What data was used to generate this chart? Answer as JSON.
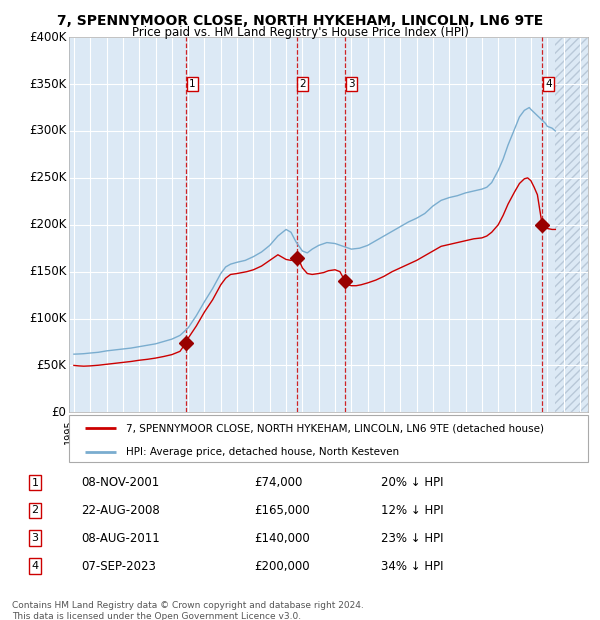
{
  "title": "7, SPENNYMOOR CLOSE, NORTH HYKEHAM, LINCOLN, LN6 9TE",
  "subtitle": "Price paid vs. HM Land Registry's House Price Index (HPI)",
  "bg_color": "#dce9f5",
  "grid_color": "#ffffff",
  "ylim": [
    0,
    400000
  ],
  "yticks": [
    0,
    50000,
    100000,
    150000,
    200000,
    250000,
    300000,
    350000,
    400000
  ],
  "ytick_labels": [
    "£0",
    "£50K",
    "£100K",
    "£150K",
    "£200K",
    "£250K",
    "£300K",
    "£350K",
    "£400K"
  ],
  "xlim_start": 1994.7,
  "xlim_end": 2026.5,
  "hatch_start": 2024.5,
  "transactions": [
    {
      "num": 1,
      "date": "08-NOV-2001",
      "year": 2001.86,
      "price": 74000,
      "pct": "20%"
    },
    {
      "num": 2,
      "date": "22-AUG-2008",
      "year": 2008.64,
      "price": 165000,
      "pct": "12%"
    },
    {
      "num": 3,
      "date": "08-AUG-2011",
      "year": 2011.61,
      "price": 140000,
      "pct": "23%"
    },
    {
      "num": 4,
      "date": "07-SEP-2023",
      "year": 2023.69,
      "price": 200000,
      "pct": "34%"
    }
  ],
  "legend_label_red": "7, SPENNYMOOR CLOSE, NORTH HYKEHAM, LINCOLN, LN6 9TE (detached house)",
  "legend_label_blue": "HPI: Average price, detached house, North Kesteven",
  "footer": "Contains HM Land Registry data © Crown copyright and database right 2024.\nThis data is licensed under the Open Government Licence v3.0.",
  "red_color": "#cc0000",
  "blue_color": "#7aadcf",
  "marker_color": "#990000",
  "hpi_curve": [
    [
      1995.0,
      62000
    ],
    [
      1995.3,
      62200
    ],
    [
      1995.6,
      62500
    ],
    [
      1996.0,
      63200
    ],
    [
      1996.5,
      64000
    ],
    [
      1997.0,
      65500
    ],
    [
      1997.5,
      66500
    ],
    [
      1998.0,
      67500
    ],
    [
      1998.5,
      68500
    ],
    [
      1999.0,
      70000
    ],
    [
      1999.5,
      71500
    ],
    [
      2000.0,
      73000
    ],
    [
      2000.5,
      75500
    ],
    [
      2001.0,
      78000
    ],
    [
      2001.5,
      82000
    ],
    [
      2002.0,
      90000
    ],
    [
      2002.5,
      103000
    ],
    [
      2003.0,
      118000
    ],
    [
      2003.5,
      132000
    ],
    [
      2004.0,
      148000
    ],
    [
      2004.3,
      155000
    ],
    [
      2004.6,
      158000
    ],
    [
      2005.0,
      160000
    ],
    [
      2005.5,
      162000
    ],
    [
      2006.0,
      166000
    ],
    [
      2006.5,
      171000
    ],
    [
      2007.0,
      178000
    ],
    [
      2007.5,
      188000
    ],
    [
      2008.0,
      195000
    ],
    [
      2008.3,
      192000
    ],
    [
      2008.6,
      182000
    ],
    [
      2009.0,
      172000
    ],
    [
      2009.3,
      170000
    ],
    [
      2009.6,
      174000
    ],
    [
      2010.0,
      178000
    ],
    [
      2010.5,
      181000
    ],
    [
      2011.0,
      180000
    ],
    [
      2011.5,
      177000
    ],
    [
      2012.0,
      174000
    ],
    [
      2012.5,
      175000
    ],
    [
      2013.0,
      178000
    ],
    [
      2013.5,
      183000
    ],
    [
      2014.0,
      188000
    ],
    [
      2014.5,
      193000
    ],
    [
      2015.0,
      198000
    ],
    [
      2015.5,
      203000
    ],
    [
      2016.0,
      207000
    ],
    [
      2016.5,
      212000
    ],
    [
      2017.0,
      220000
    ],
    [
      2017.5,
      226000
    ],
    [
      2018.0,
      229000
    ],
    [
      2018.5,
      231000
    ],
    [
      2019.0,
      234000
    ],
    [
      2019.5,
      236000
    ],
    [
      2020.0,
      238000
    ],
    [
      2020.3,
      240000
    ],
    [
      2020.6,
      245000
    ],
    [
      2021.0,
      258000
    ],
    [
      2021.3,
      270000
    ],
    [
      2021.6,
      285000
    ],
    [
      2022.0,
      302000
    ],
    [
      2022.3,
      315000
    ],
    [
      2022.6,
      322000
    ],
    [
      2022.9,
      325000
    ],
    [
      2023.0,
      323000
    ],
    [
      2023.3,
      318000
    ],
    [
      2023.6,
      313000
    ],
    [
      2023.9,
      308000
    ],
    [
      2024.0,
      305000
    ],
    [
      2024.3,
      303000
    ],
    [
      2024.5,
      300000
    ]
  ],
  "red_curve": [
    [
      1995.0,
      50000
    ],
    [
      1995.3,
      49500
    ],
    [
      1995.6,
      49200
    ],
    [
      1996.0,
      49500
    ],
    [
      1996.5,
      50200
    ],
    [
      1997.0,
      51200
    ],
    [
      1997.5,
      52200
    ],
    [
      1998.0,
      53200
    ],
    [
      1998.5,
      54200
    ],
    [
      1999.0,
      55500
    ],
    [
      1999.5,
      56500
    ],
    [
      2000.0,
      57800
    ],
    [
      2000.5,
      59500
    ],
    [
      2001.0,
      61500
    ],
    [
      2001.5,
      65000
    ],
    [
      2001.86,
      74000
    ],
    [
      2002.0,
      79000
    ],
    [
      2002.5,
      92000
    ],
    [
      2003.0,
      107000
    ],
    [
      2003.5,
      120000
    ],
    [
      2004.0,
      136000
    ],
    [
      2004.3,
      143000
    ],
    [
      2004.6,
      147000
    ],
    [
      2005.0,
      148000
    ],
    [
      2005.3,
      149000
    ],
    [
      2005.6,
      150000
    ],
    [
      2006.0,
      152000
    ],
    [
      2006.5,
      156000
    ],
    [
      2007.0,
      162000
    ],
    [
      2007.5,
      168000
    ],
    [
      2008.0,
      163000
    ],
    [
      2008.3,
      162000
    ],
    [
      2008.64,
      165000
    ],
    [
      2008.8,
      162000
    ],
    [
      2009.0,
      154000
    ],
    [
      2009.3,
      148000
    ],
    [
      2009.6,
      147000
    ],
    [
      2010.0,
      148000
    ],
    [
      2010.3,
      149000
    ],
    [
      2010.6,
      151000
    ],
    [
      2011.0,
      152000
    ],
    [
      2011.3,
      150000
    ],
    [
      2011.61,
      140000
    ],
    [
      2011.8,
      136000
    ],
    [
      2012.0,
      135000
    ],
    [
      2012.3,
      135000
    ],
    [
      2012.6,
      136000
    ],
    [
      2013.0,
      138000
    ],
    [
      2013.5,
      141000
    ],
    [
      2014.0,
      145000
    ],
    [
      2014.5,
      150000
    ],
    [
      2015.0,
      154000
    ],
    [
      2015.5,
      158000
    ],
    [
      2016.0,
      162000
    ],
    [
      2016.5,
      167000
    ],
    [
      2017.0,
      172000
    ],
    [
      2017.5,
      177000
    ],
    [
      2018.0,
      179000
    ],
    [
      2018.5,
      181000
    ],
    [
      2019.0,
      183000
    ],
    [
      2019.5,
      185000
    ],
    [
      2020.0,
      186000
    ],
    [
      2020.3,
      188000
    ],
    [
      2020.6,
      192000
    ],
    [
      2021.0,
      200000
    ],
    [
      2021.3,
      210000
    ],
    [
      2021.6,
      222000
    ],
    [
      2022.0,
      235000
    ],
    [
      2022.3,
      244000
    ],
    [
      2022.6,
      249000
    ],
    [
      2022.8,
      250000
    ],
    [
      2023.0,
      247000
    ],
    [
      2023.2,
      240000
    ],
    [
      2023.4,
      232000
    ],
    [
      2023.69,
      200000
    ],
    [
      2023.8,
      197000
    ],
    [
      2024.0,
      196000
    ],
    [
      2024.3,
      195000
    ],
    [
      2024.5,
      195000
    ]
  ]
}
